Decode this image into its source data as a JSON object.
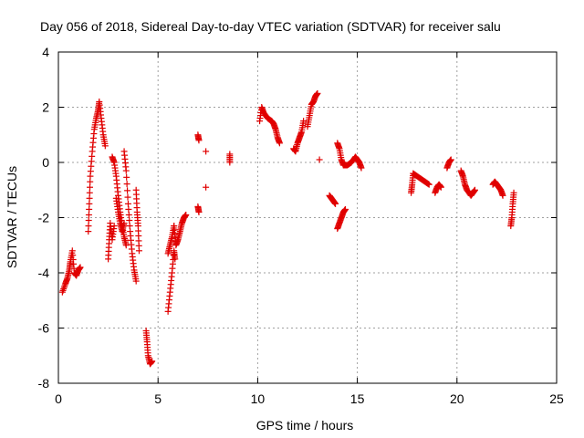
{
  "chart_data": {
    "type": "scatter",
    "title": "Day 056 of 2018, Sidereal Day-to-day VTEC variation (SDTVAR) for receiver salu",
    "xlabel": "GPS time / hours",
    "ylabel": "SDTVAR / TECUs",
    "xlim": [
      0,
      25
    ],
    "ylim": [
      -8,
      4
    ],
    "xticks": [
      "0",
      "5",
      "10",
      "15",
      "20",
      "25"
    ],
    "yticks": [
      "4",
      "2",
      "0",
      "-2",
      "-4",
      "-6",
      "-8"
    ],
    "grid": true,
    "marker": "+",
    "color": "#e00000",
    "series": [
      {
        "name": "salu",
        "segments": [
          [
            [
              0.2,
              -4.7
            ],
            [
              0.35,
              -4.4
            ],
            [
              0.45,
              -4.2
            ],
            [
              0.55,
              -3.9
            ],
            [
              0.6,
              -3.6
            ],
            [
              0.7,
              -3.2
            ],
            [
              0.8,
              -4.0
            ],
            [
              0.9,
              -4.1
            ],
            [
              1.0,
              -3.9
            ],
            [
              1.1,
              -3.8
            ]
          ],
          [
            [
              1.5,
              -2.5
            ],
            [
              1.55,
              -1.5
            ],
            [
              1.6,
              -0.5
            ],
            [
              1.7,
              0.4
            ],
            [
              1.8,
              1.2
            ],
            [
              1.9,
              1.6
            ],
            [
              2.0,
              1.9
            ],
            [
              2.05,
              2.2
            ],
            [
              2.15,
              1.6
            ],
            [
              2.25,
              1.0
            ],
            [
              2.35,
              0.6
            ]
          ],
          [
            [
              2.5,
              -3.5
            ],
            [
              2.55,
              -2.8
            ],
            [
              2.6,
              -2.2
            ],
            [
              2.7,
              -2.8
            ],
            [
              2.8,
              -2.3
            ]
          ],
          [
            [
              2.7,
              0.2
            ],
            [
              2.8,
              0.0
            ],
            [
              2.9,
              -0.5
            ],
            [
              3.0,
              -1.2
            ],
            [
              3.1,
              -1.8
            ],
            [
              3.2,
              -2.3
            ],
            [
              3.3,
              -2.7
            ],
            [
              3.4,
              -3.0
            ]
          ],
          [
            [
              2.9,
              -1.3
            ],
            [
              3.0,
              -1.8
            ],
            [
              3.1,
              -2.2
            ],
            [
              3.2,
              -2.5
            ],
            [
              3.3,
              -2.2
            ]
          ],
          [
            [
              3.3,
              0.4
            ],
            [
              3.4,
              -0.3
            ],
            [
              3.5,
              -1.5
            ],
            [
              3.6,
              -2.5
            ],
            [
              3.7,
              -3.3
            ],
            [
              3.8,
              -3.9
            ],
            [
              3.9,
              -4.3
            ]
          ],
          [
            [
              3.9,
              -1.0
            ],
            [
              3.95,
              -1.8
            ],
            [
              4.0,
              -2.3
            ],
            [
              4.05,
              -3.2
            ]
          ],
          [
            [
              4.4,
              -6.1
            ],
            [
              4.45,
              -6.5
            ],
            [
              4.5,
              -7.0
            ],
            [
              4.6,
              -7.3
            ],
            [
              4.7,
              -7.2
            ]
          ],
          [
            [
              5.5,
              -5.4
            ],
            [
              5.6,
              -4.7
            ],
            [
              5.7,
              -4.0
            ],
            [
              5.8,
              -3.2
            ],
            [
              5.85,
              -3.5
            ]
          ],
          [
            [
              5.5,
              -3.3
            ],
            [
              5.6,
              -3.0
            ],
            [
              5.7,
              -2.7
            ],
            [
              5.8,
              -2.3
            ]
          ],
          [
            [
              5.8,
              -2.3
            ],
            [
              5.9,
              -3.0
            ],
            [
              6.0,
              -2.8
            ],
            [
              6.1,
              -2.5
            ],
            [
              6.2,
              -2.2
            ],
            [
              6.3,
              -2.0
            ],
            [
              6.4,
              -1.9
            ]
          ],
          [
            [
              7.0,
              -1.6
            ],
            [
              7.05,
              -1.8
            ]
          ],
          [
            [
              7.0,
              1.0
            ],
            [
              7.05,
              0.8
            ]
          ],
          [
            [
              7.4,
              0.4
            ]
          ],
          [
            [
              7.4,
              -0.9
            ]
          ],
          [
            [
              8.6,
              0.0
            ],
            [
              8.6,
              0.3
            ]
          ],
          [
            [
              10.1,
              1.5
            ],
            [
              10.2,
              2.0
            ],
            [
              10.3,
              1.8
            ],
            [
              10.5,
              1.6
            ],
            [
              10.7,
              1.5
            ],
            [
              10.8,
              1.4
            ],
            [
              10.9,
              1.2
            ],
            [
              11.0,
              0.9
            ],
            [
              11.1,
              0.7
            ]
          ],
          [
            [
              11.8,
              0.5
            ],
            [
              11.9,
              0.4
            ],
            [
              12.0,
              0.7
            ],
            [
              12.1,
              0.9
            ],
            [
              12.2,
              1.1
            ],
            [
              12.3,
              1.5
            ]
          ],
          [
            [
              12.5,
              1.3
            ],
            [
              12.6,
              1.7
            ],
            [
              12.7,
              2.1
            ],
            [
              12.8,
              2.2
            ],
            [
              12.9,
              2.4
            ],
            [
              13.0,
              2.5
            ]
          ],
          [
            [
              13.1,
              0.1
            ]
          ],
          [
            [
              13.6,
              -1.2
            ],
            [
              13.7,
              -1.3
            ],
            [
              13.8,
              -1.4
            ],
            [
              13.9,
              -1.5
            ]
          ],
          [
            [
              14.0,
              0.7
            ],
            [
              14.1,
              0.5
            ],
            [
              14.2,
              0.1
            ],
            [
              14.3,
              -0.1
            ],
            [
              14.5,
              -0.1
            ],
            [
              14.7,
              0.0
            ],
            [
              14.9,
              0.2
            ],
            [
              15.0,
              0.1
            ],
            [
              15.1,
              0.0
            ],
            [
              15.2,
              -0.2
            ]
          ],
          [
            [
              14.0,
              -2.4
            ],
            [
              14.1,
              -2.2
            ],
            [
              14.2,
              -2.0
            ],
            [
              14.3,
              -1.8
            ],
            [
              14.4,
              -1.7
            ]
          ],
          [
            [
              17.7,
              -1.1
            ],
            [
              17.75,
              -0.8
            ],
            [
              17.8,
              -0.4
            ],
            [
              18.0,
              -0.5
            ],
            [
              18.2,
              -0.6
            ],
            [
              18.4,
              -0.7
            ],
            [
              18.6,
              -0.8
            ]
          ],
          [
            [
              18.9,
              -1.1
            ],
            [
              19.0,
              -0.9
            ],
            [
              19.1,
              -0.8
            ],
            [
              19.2,
              -0.9
            ]
          ],
          [
            [
              19.5,
              -0.2
            ],
            [
              19.6,
              0.0
            ],
            [
              19.7,
              0.1
            ]
          ],
          [
            [
              20.2,
              -0.3
            ],
            [
              20.3,
              -0.5
            ],
            [
              20.4,
              -0.8
            ],
            [
              20.5,
              -1.0
            ],
            [
              20.7,
              -1.2
            ],
            [
              20.8,
              -1.1
            ],
            [
              20.9,
              -1.0
            ]
          ],
          [
            [
              21.8,
              -0.8
            ],
            [
              21.9,
              -0.7
            ],
            [
              22.0,
              -0.8
            ],
            [
              22.1,
              -0.9
            ],
            [
              22.2,
              -1.0
            ],
            [
              22.3,
              -1.2
            ]
          ],
          [
            [
              22.7,
              -2.3
            ],
            [
              22.75,
              -2.0
            ],
            [
              22.8,
              -1.5
            ],
            [
              22.85,
              -1.1
            ]
          ]
        ]
      }
    ]
  }
}
